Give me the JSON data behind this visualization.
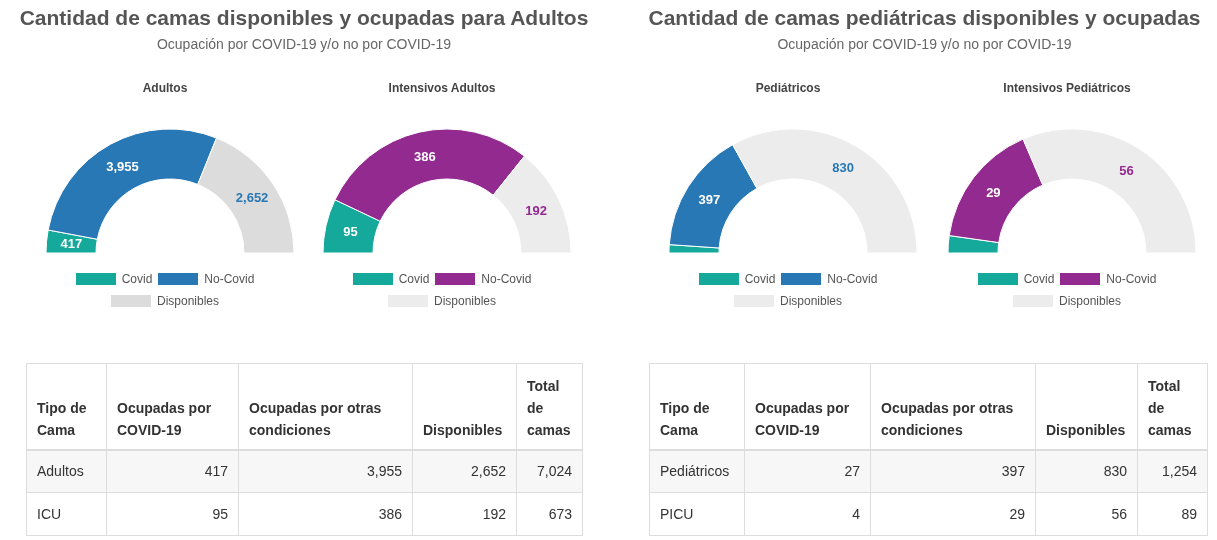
{
  "chart_data": [
    {
      "type": "other",
      "title": "Cantidad de camas disponibles y ocupadas para Adultos",
      "subtitle": "Ocupación por COVID-19 y/o no por COVID-19"
    },
    {
      "type": "donut",
      "title": "Adultos",
      "categories": [
        "Covid",
        "No-Covid",
        "Disponibles"
      ],
      "values": [
        417,
        3955,
        2652
      ],
      "colors": [
        "#14a99a",
        "#2878b5",
        "#dcdcdc"
      ],
      "value_labels": [
        "417",
        "3,955",
        "2,652"
      ],
      "legend": "bottom"
    },
    {
      "type": "donut",
      "title": "Intensivos Adultos",
      "categories": [
        "Covid",
        "No-Covid",
        "Disponibles"
      ],
      "values": [
        95,
        386,
        192
      ],
      "colors": [
        "#14a99a",
        "#932a8f",
        "#ececec"
      ],
      "value_labels": [
        "95",
        "386",
        "192"
      ],
      "legend": "bottom"
    },
    {
      "type": "other",
      "categories": [
        "Tipo de Cama",
        "Ocupadas por COVID-19",
        "Ocupadas por otras condiciones",
        "Disponibles",
        "Total de camas"
      ],
      "y_categories": [
        "Adultos",
        "ICU"
      ],
      "cell_labels": [
        [
          "417",
          "3,955",
          "2,652",
          "7,024"
        ],
        [
          "95",
          "386",
          "192",
          "673"
        ]
      ]
    },
    {
      "type": "other",
      "title": "Cantidad de camas pediátricas disponibles y ocupadas",
      "subtitle": "Ocupación por COVID-19 y/o no por COVID-19"
    },
    {
      "type": "donut",
      "title": "Pediátricos",
      "categories": [
        "Covid",
        "No-Covid",
        "Disponibles"
      ],
      "values": [
        27,
        397,
        830
      ],
      "colors": [
        "#14a99a",
        "#2878b5",
        "#ececec"
      ],
      "value_labels": [
        null,
        "397",
        "830"
      ],
      "legend": "bottom"
    },
    {
      "type": "donut",
      "title": "Intensivos Pediátricos",
      "categories": [
        "Covid",
        "No-Covid",
        "Disponibles"
      ],
      "values": [
        4,
        29,
        56
      ],
      "colors": [
        "#14a99a",
        "#932a8f",
        "#ececec"
      ],
      "value_labels": [
        null,
        "29",
        "56"
      ],
      "legend": "bottom"
    },
    {
      "type": "other",
      "categories": [
        "Tipo de Cama",
        "Ocupadas por COVID-19",
        "Ocupadas por otras condiciones",
        "Disponibles",
        "Total de camas"
      ],
      "y_categories": [
        "Pediátricos",
        "PICU"
      ],
      "cell_labels": [
        [
          "27",
          "397",
          "830",
          "1,254"
        ],
        [
          "4",
          "29",
          "56",
          "89"
        ]
      ]
    }
  ]
}
